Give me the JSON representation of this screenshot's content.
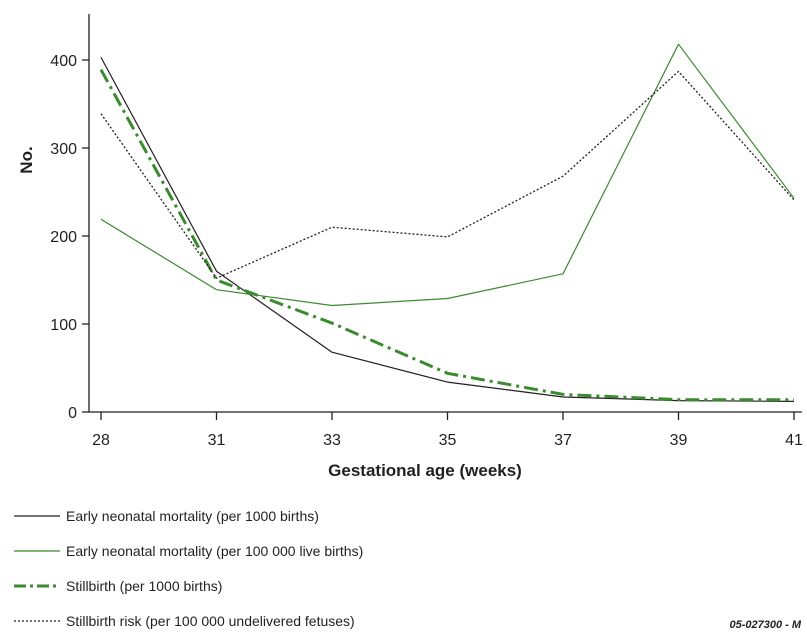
{
  "chart_data": {
    "type": "line",
    "xlabel": "Gestational age (weeks)",
    "ylabel": "No.",
    "categories": [
      "28",
      "31",
      "33",
      "35",
      "37",
      "39",
      "41"
    ],
    "y_ticks": [
      0,
      100,
      200,
      300,
      400
    ],
    "ylim": [
      0,
      430
    ],
    "grid": false,
    "legend_position": "bottom-left",
    "series": [
      {
        "name": "Early neonatal mortality (per 1000 births)",
        "values": [
          403,
          160,
          68,
          34,
          17,
          13,
          12
        ],
        "color": "#231f20",
        "style": "solid"
      },
      {
        "name": "Early neonatal mortality (per 100 000 live births)",
        "values": [
          219,
          139,
          121,
          129,
          157,
          418,
          243
        ],
        "color": "#3a8a2e",
        "style": "solid"
      },
      {
        "name": "Stillbirth (per 1000 births)",
        "values": [
          389,
          150,
          101,
          44,
          20,
          14,
          14
        ],
        "color": "#3a8a2e",
        "style": "dashdot"
      },
      {
        "name": "Stillbirth risk (per 100 000 undelivered fetuses)",
        "values": [
          339,
          152,
          210,
          199,
          268,
          387,
          241
        ],
        "color": "#231f20",
        "style": "dotted"
      }
    ]
  },
  "reference_code": "05-027300 - M"
}
